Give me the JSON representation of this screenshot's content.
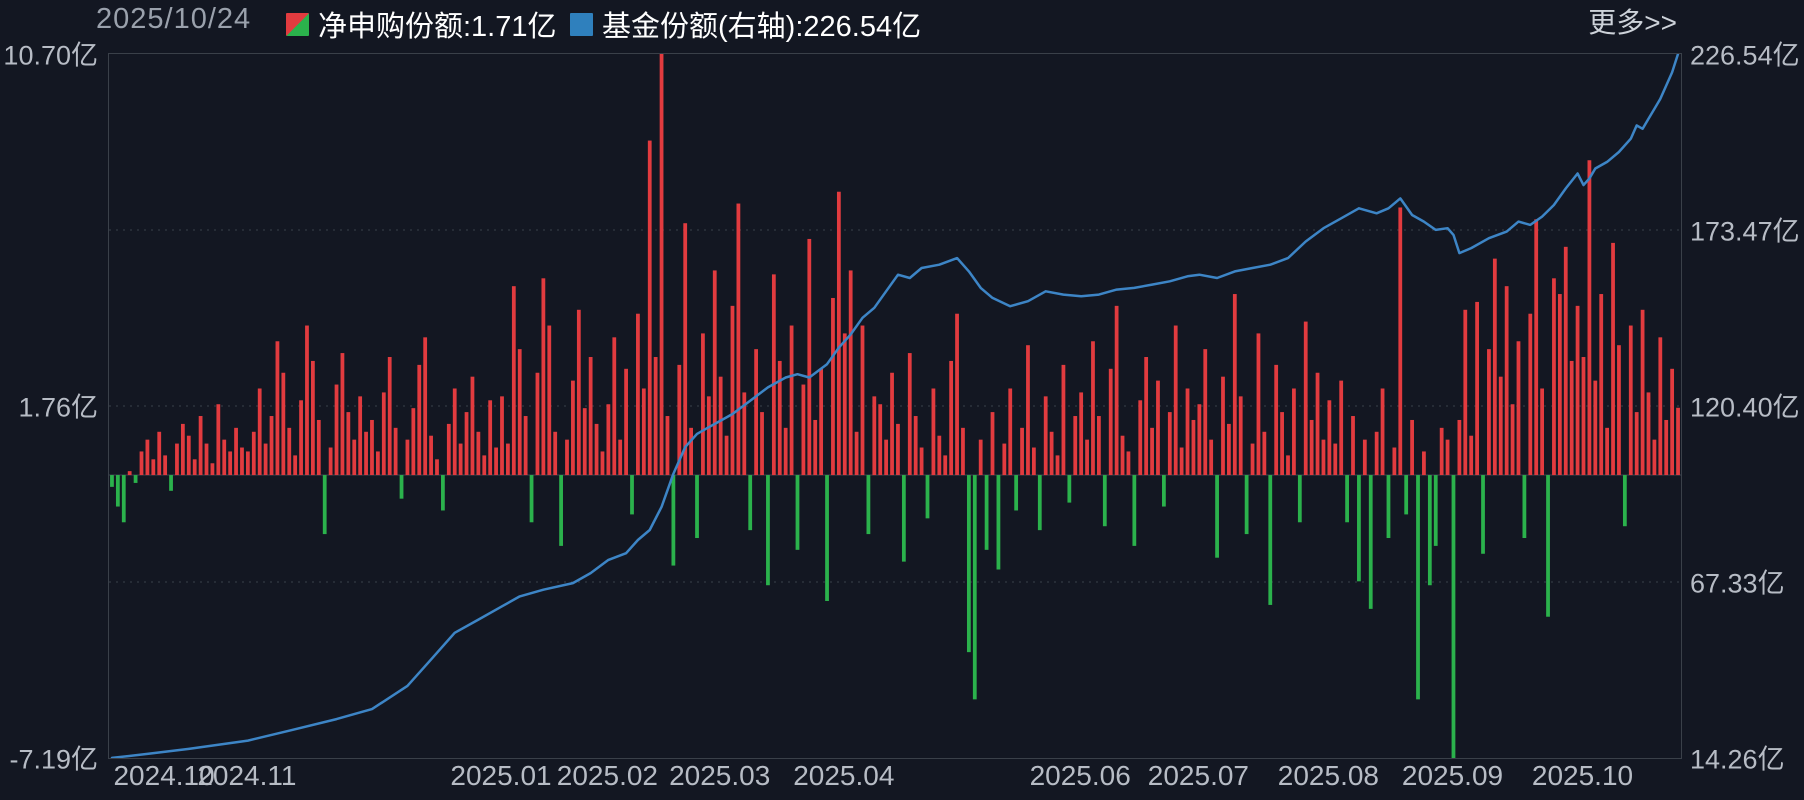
{
  "header": {
    "date": "2025/10/24",
    "legend": [
      {
        "icon": "red-green-split-square",
        "label": "净申购份额",
        "text": "净申购份额:1.71亿",
        "value": "1.71亿"
      },
      {
        "icon": "blue-square",
        "label": "基金份额(右轴)",
        "text": "基金份额(右轴):226.54亿",
        "value": "226.54亿"
      }
    ],
    "more_link": "更多>>"
  },
  "colors": {
    "background": "#131722",
    "bar_positive": "#e23b3f",
    "bar_negative": "#2bb24c",
    "line": "#3d85c6",
    "legend_blue": "#2f80bd",
    "grid": "#3a4049",
    "zero_line": "#3b414d",
    "text_primary": "#ffffff",
    "text_secondary": "#9aa1ac",
    "axis_text": "#b7bcc5"
  },
  "chart_data": {
    "type": "bar+line combo, daily trading data",
    "title": "",
    "left_axis": {
      "min": -7.19,
      "max": 10.7,
      "ticks": [
        "10.70亿",
        "1.76亿",
        "-7.19亿"
      ],
      "series": "净申购份额"
    },
    "right_axis": {
      "min": 14.26,
      "max": 226.54,
      "ticks": [
        "226.54亿",
        "173.47亿",
        "120.40亿",
        "67.33亿",
        "14.26亿"
      ],
      "series": "基金份额"
    },
    "grid": "3 dotted horizontal gridlines at quarter heights",
    "legend_position": "top",
    "x_axis": {
      "total_days": 266,
      "month_labels": [
        {
          "label": "2024.10",
          "day": 9
        },
        {
          "label": "2024.11",
          "day": 23
        },
        {
          "label": "2025.01",
          "day": 66
        },
        {
          "label": "2025.02",
          "day": 84
        },
        {
          "label": "2025.03",
          "day": 103
        },
        {
          "label": "2025.04",
          "day": 124
        },
        {
          "label": "2025.06",
          "day": 164
        },
        {
          "label": "2025.07",
          "day": 184
        },
        {
          "label": "2025.08",
          "day": 206
        },
        {
          "label": "2025.09",
          "day": 227
        },
        {
          "label": "2025.10",
          "day": 249
        }
      ]
    },
    "series": [
      {
        "name": "净申购份额",
        "type": "bar",
        "axis": "left",
        "unit": "亿",
        "latest_value": 1.71,
        "values": [
          -0.3,
          -0.8,
          -1.2,
          0.1,
          -0.2,
          0.6,
          0.9,
          0.4,
          1.1,
          0.5,
          -0.4,
          0.8,
          1.3,
          1.0,
          0.4,
          1.5,
          0.8,
          0.3,
          1.8,
          0.9,
          0.6,
          1.2,
          0.7,
          0.6,
          1.1,
          2.2,
          0.8,
          1.5,
          3.4,
          2.6,
          1.2,
          0.5,
          1.9,
          3.8,
          2.9,
          1.4,
          -1.5,
          0.7,
          2.3,
          3.1,
          1.6,
          0.9,
          2.0,
          1.1,
          1.4,
          0.6,
          2.1,
          3.0,
          1.2,
          -0.6,
          0.9,
          1.7,
          2.8,
          3.5,
          1.0,
          0.4,
          -0.9,
          1.3,
          2.2,
          0.8,
          1.6,
          2.5,
          1.1,
          0.5,
          1.9,
          0.7,
          2.0,
          0.8,
          4.8,
          3.2,
          1.5,
          -1.2,
          2.6,
          5.0,
          3.8,
          1.1,
          -1.8,
          0.9,
          2.4,
          4.2,
          1.7,
          3.0,
          1.3,
          0.6,
          1.8,
          3.5,
          0.9,
          2.7,
          -1.0,
          4.1,
          2.2,
          8.5,
          3.0,
          10.7,
          1.5,
          -2.3,
          2.8,
          6.4,
          1.2,
          -1.6,
          3.6,
          2.0,
          5.2,
          2.5,
          1.0,
          4.3,
          6.9,
          2.1,
          -1.4,
          3.2,
          1.6,
          -2.8,
          5.1,
          2.9,
          1.2,
          3.8,
          -1.9,
          2.3,
          6.0,
          1.4,
          2.7,
          -3.2,
          4.5,
          7.2,
          3.6,
          5.2,
          1.1,
          3.8,
          -1.5,
          2.0,
          1.8,
          0.9,
          2.6,
          1.3,
          -2.2,
          3.1,
          1.5,
          0.7,
          -1.1,
          2.2,
          1.0,
          0.5,
          2.9,
          4.1,
          1.2,
          -4.5,
          -5.7,
          0.9,
          -1.9,
          1.6,
          -2.4,
          0.8,
          2.2,
          -0.9,
          1.2,
          3.3,
          0.7,
          -1.4,
          2.0,
          1.1,
          0.5,
          2.8,
          -0.7,
          1.5,
          2.1,
          0.9,
          3.4,
          1.5,
          -1.3,
          2.7,
          4.3,
          1.0,
          0.6,
          -1.8,
          1.9,
          3.0,
          1.2,
          2.4,
          -0.8,
          1.6,
          3.8,
          0.7,
          2.2,
          1.4,
          1.8,
          3.2,
          0.9,
          -2.1,
          2.5,
          1.3,
          4.6,
          2.0,
          -1.5,
          0.8,
          3.6,
          1.1,
          -3.3,
          2.8,
          1.6,
          0.5,
          2.2,
          -1.2,
          3.9,
          1.4,
          2.6,
          0.9,
          1.9,
          0.8,
          2.4,
          -1.2,
          1.5,
          -2.7,
          0.9,
          -3.4,
          1.1,
          2.2,
          -1.6,
          0.7,
          6.8,
          -1.0,
          1.4,
          -5.7,
          0.6,
          -2.8,
          -1.8,
          1.2,
          0.9,
          -7.19,
          1.4,
          4.2,
          1.0,
          4.4,
          -2.0,
          3.2,
          5.5,
          2.5,
          4.8,
          1.8,
          3.4,
          -1.6,
          4.1,
          6.5,
          2.2,
          -3.6,
          5.0,
          4.6,
          5.8,
          2.9,
          4.3,
          3.0,
          8.0,
          2.4,
          4.6,
          1.2,
          5.9,
          3.3,
          -1.3,
          3.8,
          1.6,
          4.2,
          2.1,
          0.9,
          3.5,
          1.4,
          2.7,
          1.71
        ]
      },
      {
        "name": "基金份额",
        "type": "line",
        "axis": "right",
        "unit": "亿",
        "latest_value": 226.54,
        "points": [
          [
            0,
            14.3
          ],
          [
            6,
            15.5
          ],
          [
            13,
            17
          ],
          [
            23,
            19.5
          ],
          [
            30,
            22.5
          ],
          [
            38,
            26
          ],
          [
            44,
            29
          ],
          [
            50,
            36
          ],
          [
            54,
            44
          ],
          [
            58,
            52
          ],
          [
            62,
            56
          ],
          [
            66,
            60
          ],
          [
            69,
            63
          ],
          [
            73,
            65
          ],
          [
            78,
            67
          ],
          [
            81,
            70
          ],
          [
            84,
            74
          ],
          [
            87,
            76
          ],
          [
            89,
            80
          ],
          [
            91,
            83
          ],
          [
            93,
            90
          ],
          [
            95,
            100
          ],
          [
            97,
            108
          ],
          [
            99,
            112
          ],
          [
            101,
            114
          ],
          [
            103,
            116
          ],
          [
            105,
            118
          ],
          [
            108,
            122
          ],
          [
            111,
            126
          ],
          [
            114,
            129
          ],
          [
            116,
            130
          ],
          [
            118,
            129
          ],
          [
            121,
            133
          ],
          [
            123,
            138
          ],
          [
            125,
            142
          ],
          [
            127,
            147
          ],
          [
            129,
            150
          ],
          [
            131,
            155
          ],
          [
            133,
            160
          ],
          [
            135,
            159
          ],
          [
            137,
            162
          ],
          [
            140,
            163
          ],
          [
            143,
            165
          ],
          [
            145,
            161
          ],
          [
            147,
            156
          ],
          [
            149,
            153
          ],
          [
            152,
            150.5
          ],
          [
            155,
            152
          ],
          [
            158,
            155
          ],
          [
            161,
            154
          ],
          [
            164,
            153.5
          ],
          [
            167,
            154
          ],
          [
            170,
            155.5
          ],
          [
            173,
            156
          ],
          [
            176,
            157
          ],
          [
            179,
            158
          ],
          [
            182,
            159.5
          ],
          [
            184,
            160
          ],
          [
            187,
            159
          ],
          [
            190,
            161
          ],
          [
            193,
            162
          ],
          [
            196,
            163
          ],
          [
            199,
            165
          ],
          [
            202,
            170
          ],
          [
            205,
            174
          ],
          [
            208,
            177
          ],
          [
            211,
            180
          ],
          [
            214,
            178.5
          ],
          [
            216,
            180
          ],
          [
            218,
            183
          ],
          [
            220,
            178
          ],
          [
            222,
            176
          ],
          [
            224,
            173.5
          ],
          [
            226,
            174
          ],
          [
            227,
            172
          ],
          [
            228,
            166.5
          ],
          [
            230,
            168
          ],
          [
            233,
            171
          ],
          [
            236,
            173
          ],
          [
            238,
            176
          ],
          [
            240,
            175
          ],
          [
            242,
            177.5
          ],
          [
            244,
            181
          ],
          [
            246,
            186
          ],
          [
            248,
            190.5
          ],
          [
            249,
            187
          ],
          [
            250,
            189
          ],
          [
            251,
            192
          ],
          [
            253,
            194
          ],
          [
            255,
            197
          ],
          [
            257,
            201
          ],
          [
            258,
            205
          ],
          [
            259,
            204
          ],
          [
            260,
            207
          ],
          [
            261,
            210
          ],
          [
            262,
            213
          ],
          [
            263,
            217
          ],
          [
            264,
            221
          ],
          [
            265,
            226.54
          ]
        ]
      }
    ]
  }
}
